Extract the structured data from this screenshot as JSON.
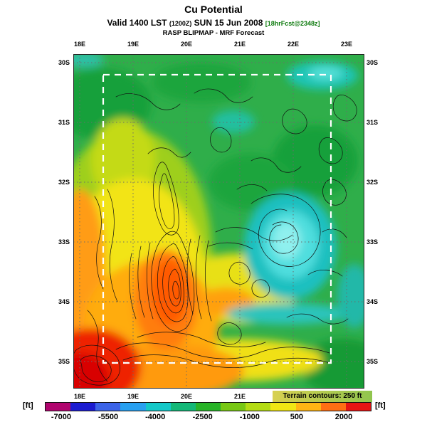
{
  "header": {
    "title": "Cu Potential",
    "valid_prefix": "Valid 1400 LST ",
    "valid_zulu": "(1200Z)",
    "valid_date": " SUN 15 Jun 2008 ",
    "valid_fcst": "[18hrFcst@2348z]",
    "model_line": "RASP BLIPMAP - MRF Forecast"
  },
  "map": {
    "lon_labels_top": [
      "18E",
      "19E",
      "20E",
      "21E",
      "22E",
      "23E"
    ],
    "lon_labels_bottom": [
      "18E",
      "19E",
      "20E",
      "21E"
    ],
    "lat_labels_left": [
      "30S",
      "31S",
      "32S",
      "33S",
      "34S",
      "35S"
    ],
    "lat_labels_right": [
      "30S",
      "31S",
      "32S",
      "33S",
      "34S",
      "35S"
    ],
    "terrain_note": "Terrain contours: 250 ft"
  },
  "colorbar": {
    "unit_left": "[ft]",
    "unit_right": "[ft]",
    "ticks": [
      "-7000",
      "-5500",
      "-4000",
      "-2500",
      "-1000",
      "500",
      "2000"
    ],
    "colors": [
      "#b0046e",
      "#1c1cd0",
      "#3c64e8",
      "#28a0f0",
      "#14c8c8",
      "#14b878",
      "#28b428",
      "#78c814",
      "#b4dc14",
      "#f0e614",
      "#ffb414",
      "#ff6e14",
      "#e61414"
    ]
  },
  "chart_data": {
    "type": "heatmap",
    "title": "Cu Potential",
    "units": "ft",
    "colorbar_ticks": [
      -7000,
      -5500,
      -4000,
      -2500,
      -1000,
      500,
      2000
    ],
    "x_ticks": [
      "18E",
      "19E",
      "20E",
      "21E",
      "22E",
      "23E"
    ],
    "y_ticks": [
      "30S",
      "31S",
      "32S",
      "33S",
      "34S",
      "35S"
    ],
    "terrain_contour_interval_ft": 250,
    "legend_position": "bottom"
  }
}
